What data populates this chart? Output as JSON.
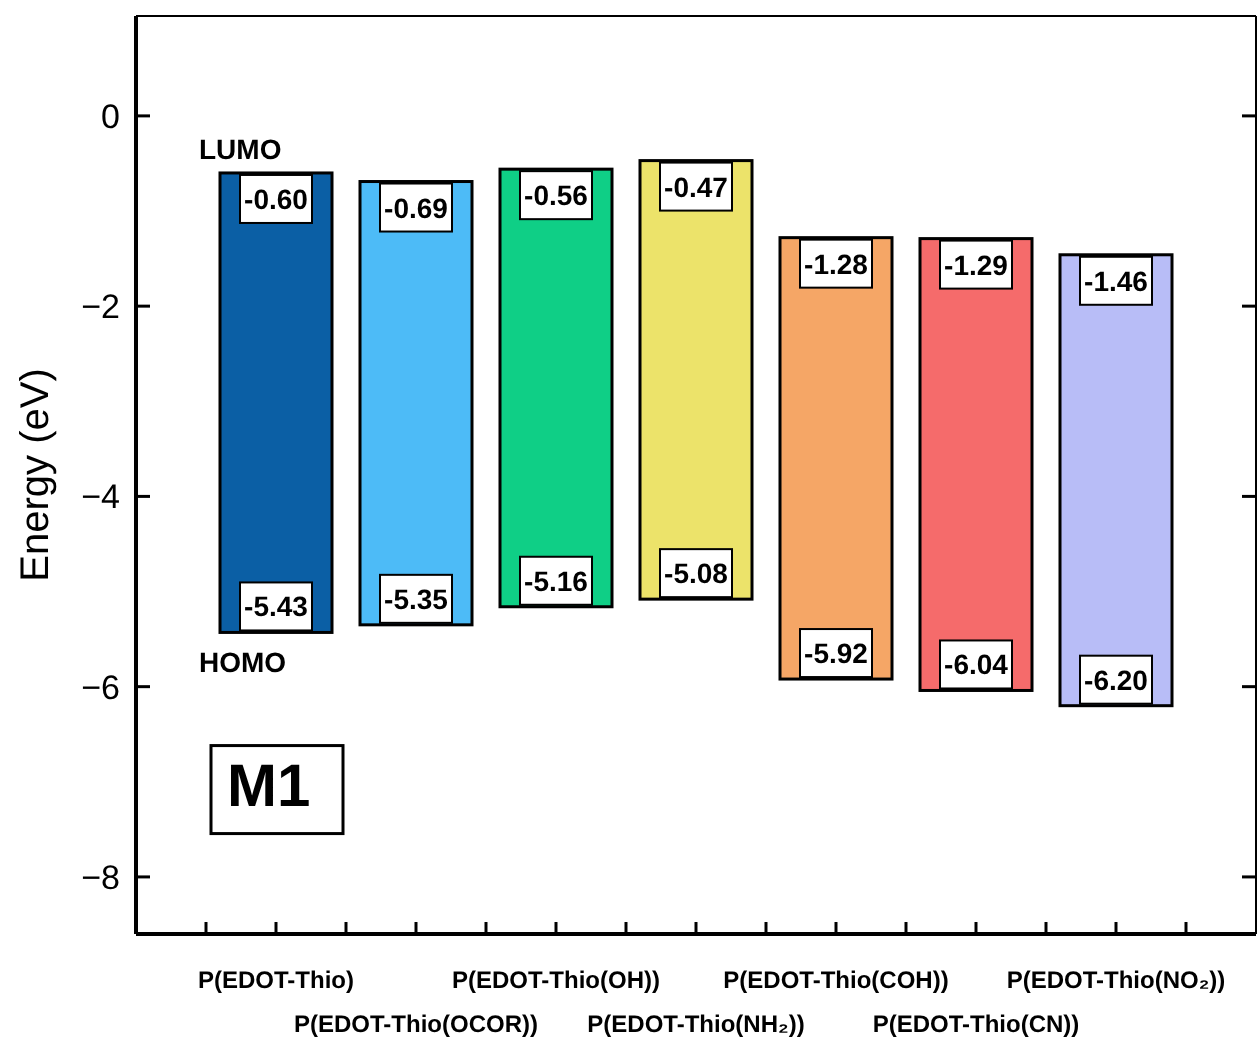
{
  "chart_data": {
    "type": "bar",
    "ylabel": "Energy (eV)",
    "categories": [
      "P(EDOT-Thio)",
      "P(EDOT-Thio(OCOR))",
      "P(EDOT-Thio(OH))",
      "P(EDOT-Thio(NH₂))",
      "P(EDOT-Thio(COH))",
      "P(EDOT-Thio(CN))",
      "P(EDOT-Thio(NO₂))"
    ],
    "base": [
      -5.43,
      -5.35,
      -5.16,
      -5.08,
      -5.92,
      -6.04,
      -6.2
    ],
    "values": [
      4.83,
      4.66,
      4.6,
      4.61,
      4.64,
      4.75,
      4.74
    ],
    "colors": [
      "#0b5fa5",
      "#4dbbf7",
      "#0fcf86",
      "#ece36a",
      "#f5a666",
      "#f56b6b",
      "#b8bdf7"
    ],
    "ylim": [
      -8.6,
      1.05
    ],
    "yticks": [
      0,
      -2,
      -4,
      -6,
      -8
    ],
    "annotations": [
      "LUMO",
      "HOMO",
      "M1",
      {
        "text": "-0.60",
        "x": "P(EDOT-Thio)",
        "y": -0.6
      },
      {
        "text": "-0.69",
        "x": "P(EDOT-Thio(OCOR))",
        "y": -0.69
      },
      {
        "text": "-0.56",
        "x": "P(EDOT-Thio(OH))",
        "y": -0.56
      },
      {
        "text": "-0.47",
        "x": "P(EDOT-Thio(NH₂))",
        "y": -0.47
      },
      {
        "text": "-1.28",
        "x": "P(EDOT-Thio(COH))",
        "y": -1.28
      },
      {
        "text": "-1.29",
        "x": "P(EDOT-Thio(CN))",
        "y": -1.29
      },
      {
        "text": "-1.46",
        "x": "P(EDOT-Thio(NO₂))",
        "y": -1.46
      },
      {
        "text": "-5.43",
        "x": "P(EDOT-Thio)",
        "y": -5.43
      },
      {
        "text": "-5.35",
        "x": "P(EDOT-Thio(OCOR))",
        "y": -5.35
      },
      {
        "text": "-5.16",
        "x": "P(EDOT-Thio(OH))",
        "y": -5.16
      },
      {
        "text": "-5.08",
        "x": "P(EDOT-Thio(NH₂))",
        "y": -5.08
      },
      {
        "text": "-5.92",
        "x": "P(EDOT-Thio(COH))",
        "y": -5.92
      },
      {
        "text": "-6.04",
        "x": "P(EDOT-Thio(CN))",
        "y": -6.04
      },
      {
        "text": "-6.20",
        "x": "P(EDOT-Thio(NO₂))",
        "y": -6.2
      }
    ]
  }
}
